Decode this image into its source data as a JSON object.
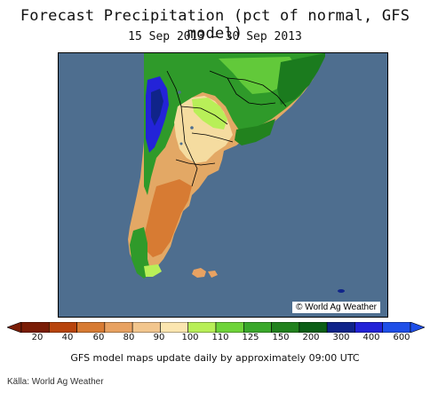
{
  "title": "Forecast Precipitation (pct of normal, GFS model)",
  "subtitle": "15 Sep 2013 – 30 Sep 2013",
  "map": {
    "credit": "© World Ag Weather",
    "ocean_color": "#4e6e8f"
  },
  "legend": {
    "ticks": [
      "20",
      "40",
      "60",
      "80",
      "90",
      "100",
      "110",
      "125",
      "150",
      "200",
      "300",
      "400",
      "600"
    ],
    "colors": [
      "#7a1d06",
      "#b8440c",
      "#d77b33",
      "#e8a262",
      "#f2c68e",
      "#fbe6b0",
      "#b8ef58",
      "#6fd43a",
      "#3aa82b",
      "#22821e",
      "#0c5f17",
      "#10248a",
      "#2323d8",
      "#1f4fe8"
    ]
  },
  "footer_note": "GFS model maps update daily by approximately 09:00 UTC",
  "source": "Källa: World Ag Weather"
}
